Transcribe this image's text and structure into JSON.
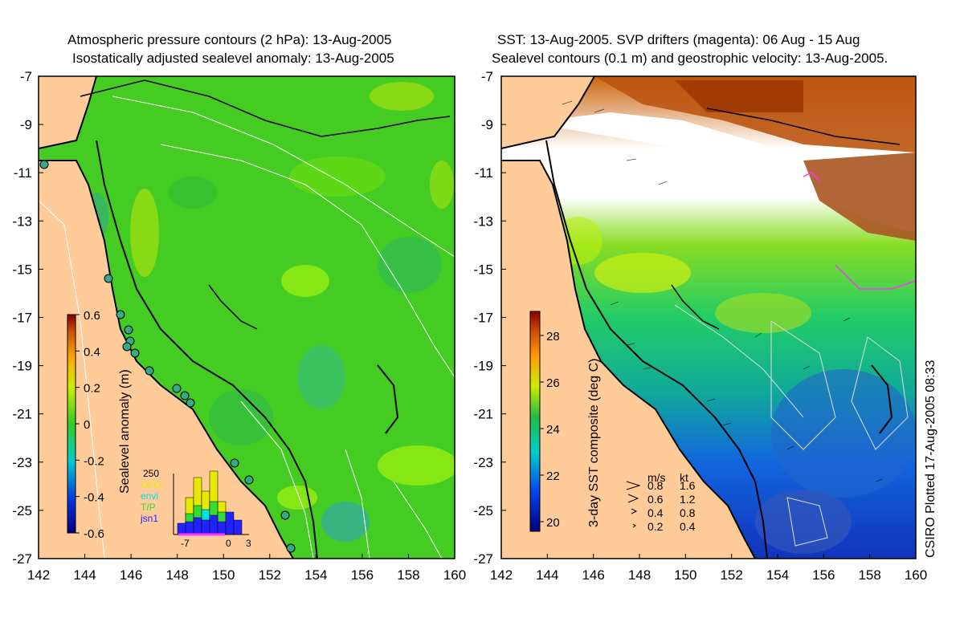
{
  "left_panel": {
    "title_line1": "Atmospheric pressure contours (2 hPa): 13-Aug-2005",
    "title_line2": "Isostatically adjusted sealevel anomaly: 13-Aug-2005",
    "colorbar_label": "Sealevel anomaly (m)",
    "colorbar_ticks": [
      "0.6",
      "0.4",
      "0.2",
      "0",
      "-0.2",
      "-0.4",
      "-0.6"
    ],
    "inset": {
      "ymax_label": "250",
      "sources": [
        {
          "name": "GFO",
          "color": "#e8e800"
        },
        {
          "name": "envi",
          "color": "#00e0e0"
        },
        {
          "name": "T/P",
          "color": "#33dd33"
        },
        {
          "name": "jsn1",
          "color": "#2222ff"
        }
      ],
      "x_ticks": [
        "-7",
        "0",
        "3"
      ]
    }
  },
  "right_panel": {
    "title_line1": "SST: 13-Aug-2005. SVP drifters (magenta): 06 Aug - 15 Aug",
    "title_line2": "Sealevel contours (0.1 m) and geostrophic velocity: 13-Aug-2005.",
    "colorbar_label": "3-day SST composite (deg C)",
    "colorbar_ticks": [
      "28",
      "26",
      "24",
      "22",
      "20"
    ],
    "velocity_legend": {
      "header_ms": "m/s",
      "header_kt": "kt",
      "rows": [
        {
          "ms": "0.8",
          "kt": "1.6"
        },
        {
          "ms": "0.6",
          "kt": "1.2"
        },
        {
          "ms": "0.4",
          "kt": "0.8"
        },
        {
          "ms": "0.2",
          "kt": "0.4"
        }
      ]
    },
    "side_text": "CSIRO Plotted 17-Aug-2005 08:33"
  },
  "axes": {
    "lat_ticks": [
      "-7",
      "-9",
      "-11",
      "-13",
      "-15",
      "-17",
      "-19",
      "-21",
      "-23",
      "-25",
      "-27"
    ],
    "lon_ticks": [
      "142",
      "144",
      "146",
      "148",
      "150",
      "152",
      "154",
      "156",
      "158",
      "160"
    ]
  },
  "colors": {
    "land": "#ffcc99",
    "ocean_green": "#44cc22",
    "coast": "#000000"
  }
}
